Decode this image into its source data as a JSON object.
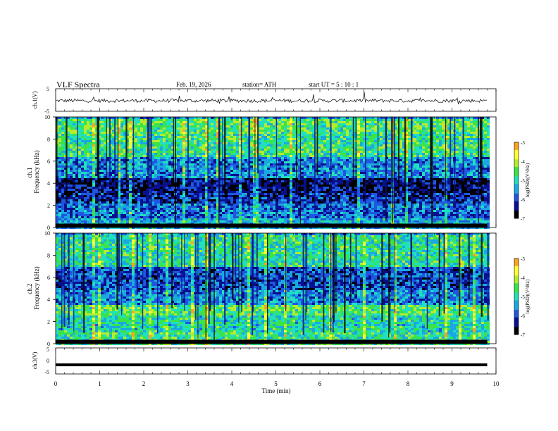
{
  "header": {
    "title": "VLF  Spectra",
    "date": "Feb. 19, 2026",
    "station": "station= ATH",
    "start": "start  UT  =    5  : 10 : 1"
  },
  "colors": {
    "colormap": [
      "#000000",
      "#08108f",
      "#1f56e0",
      "#1aa8e0",
      "#20e0c0",
      "#39e34a",
      "#b5ec2e",
      "#ffff30",
      "#ffa020",
      "#ff2020",
      "#ffffff"
    ]
  },
  "chart_data": [
    {
      "type": "line",
      "panel": "ch1-waveform",
      "ylabel": "ch.1(V)",
      "ylim": [
        -5,
        5
      ],
      "yticks": [
        "5",
        "-5"
      ],
      "xlim": [
        0,
        10
      ],
      "approx_level": -0.3
    },
    {
      "type": "heatmap",
      "panel": "ch1-spectrogram",
      "ylabel": "ch.1\nFrequency  (kHz)",
      "ylim": [
        0,
        10
      ],
      "yticks": [
        "0",
        "2",
        "4",
        "6",
        "8",
        "10"
      ],
      "xlim": [
        0,
        10
      ],
      "colorbar": {
        "label": "log(PSD)(V²/Hz)",
        "ticks": [
          "-3",
          "-4",
          "-5",
          "-6",
          "-7"
        ],
        "range": [
          -7,
          -3
        ]
      },
      "bands_khz": [
        {
          "from": 0.0,
          "to": 1.0,
          "level": -5.4
        },
        {
          "from": 1.0,
          "to": 2.2,
          "level": -5.8
        },
        {
          "from": 2.2,
          "to": 3.2,
          "level": -6.2
        },
        {
          "from": 3.2,
          "to": 4.6,
          "level": -6.5
        },
        {
          "from": 4.6,
          "to": 6.5,
          "level": -5.6
        },
        {
          "from": 6.5,
          "to": 8.5,
          "level": -4.8
        },
        {
          "from": 8.5,
          "to": 10.0,
          "level": -4.6
        }
      ]
    },
    {
      "type": "heatmap",
      "panel": "ch2-spectrogram",
      "ylabel": "ch.2\nFrequency  (kHz)",
      "ylim": [
        0,
        10
      ],
      "yticks": [
        "0",
        "2",
        "4",
        "6",
        "8",
        "10"
      ],
      "xlim": [
        0,
        10
      ],
      "colorbar": {
        "label": "log(PSD)(V²/Hz)",
        "ticks": [
          "-3",
          "-4",
          "-5",
          "-6",
          "-7"
        ],
        "range": [
          -7,
          -3
        ]
      },
      "bands_khz": [
        {
          "from": 0.0,
          "to": 1.2,
          "level": -4.8
        },
        {
          "from": 1.2,
          "to": 2.6,
          "level": -5.0
        },
        {
          "from": 2.6,
          "to": 3.6,
          "level": -4.6
        },
        {
          "from": 3.6,
          "to": 5.0,
          "level": -5.6
        },
        {
          "from": 5.0,
          "to": 7.0,
          "level": -6.0
        },
        {
          "from": 7.0,
          "to": 10.0,
          "level": -4.9
        }
      ]
    },
    {
      "type": "line",
      "panel": "ch3-waveform",
      "ylabel": "ch.3(V)",
      "ylim": [
        -5,
        5
      ],
      "yticks": [
        "5",
        "0",
        "-5"
      ],
      "xlim": [
        0,
        10
      ],
      "approx_level": -1.5
    }
  ],
  "xaxis": {
    "label": "Time  (min)",
    "ticks": [
      "0",
      "1",
      "2",
      "3",
      "4",
      "5",
      "6",
      "7",
      "8",
      "9",
      "10"
    ],
    "range": [
      0,
      10
    ],
    "data_end": 9.8
  }
}
